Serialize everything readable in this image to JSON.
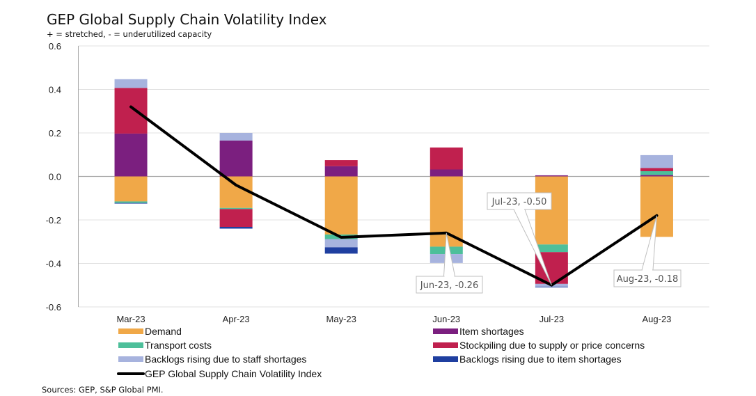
{
  "chart_data": {
    "type": "bar",
    "stacked": true,
    "title": "GEP Global Supply Chain Volatility Index",
    "subtitle": "+ = stretched, - = underutilized capacity",
    "source": "Sources: GEP, S&P Global PMI.",
    "xlabel": "",
    "ylabel": "",
    "ylim": [
      -0.6,
      0.6
    ],
    "yticks": [
      "0.6",
      "0.4",
      "0.2",
      "0.0",
      "-0.2",
      "-0.4",
      "-0.6"
    ],
    "ytick_values": [
      0.6,
      0.4,
      0.2,
      0.0,
      -0.2,
      -0.4,
      -0.6
    ],
    "grid": true,
    "legend_position": "bottom",
    "categories": [
      "Mar-23",
      "Apr-23",
      "May-23",
      "Jun-23",
      "Jul-23",
      "Aug-23"
    ],
    "series": [
      {
        "name": "Demand",
        "color": "#F0A848",
        "values": [
          -0.115,
          -0.145,
          -0.267,
          -0.323,
          -0.313,
          -0.278
        ]
      },
      {
        "name": "Item shortages",
        "color": "#7B1F7F",
        "values": [
          0.197,
          0.165,
          0.047,
          0.032,
          0.005,
          0.007
        ]
      },
      {
        "name": "Transport costs",
        "color": "#4DBF9A",
        "values": [
          -0.007,
          -0.005,
          -0.021,
          -0.034,
          -0.035,
          0.017
        ]
      },
      {
        "name": "Stockpiling due to supply or price concerns",
        "color": "#C0204E",
        "values": [
          0.21,
          -0.082,
          0.028,
          0.101,
          -0.146,
          0.015
        ]
      },
      {
        "name": "Backlogs rising due to staff shortages",
        "color": "#A7B3DE",
        "values": [
          0.04,
          0.035,
          -0.038,
          -0.041,
          -0.013,
          0.059
        ]
      },
      {
        "name": "Backlogs rising due to item shortages",
        "color": "#1F3FA0",
        "values": [
          -0.003,
          -0.008,
          -0.029,
          0.0,
          -0.003,
          0.0
        ]
      }
    ],
    "line": {
      "name": "GEP Global Supply Chain Volatility Index",
      "color": "#000000",
      "values": [
        0.32,
        -0.04,
        -0.28,
        -0.26,
        -0.5,
        -0.18
      ]
    },
    "annotations": [
      {
        "category": "Jun-23",
        "text": "Jun-23, -0.26"
      },
      {
        "category": "Jul-23",
        "text": "Jul-23, -0.50"
      },
      {
        "category": "Aug-23",
        "text": "Aug-23, -0.18"
      }
    ]
  }
}
